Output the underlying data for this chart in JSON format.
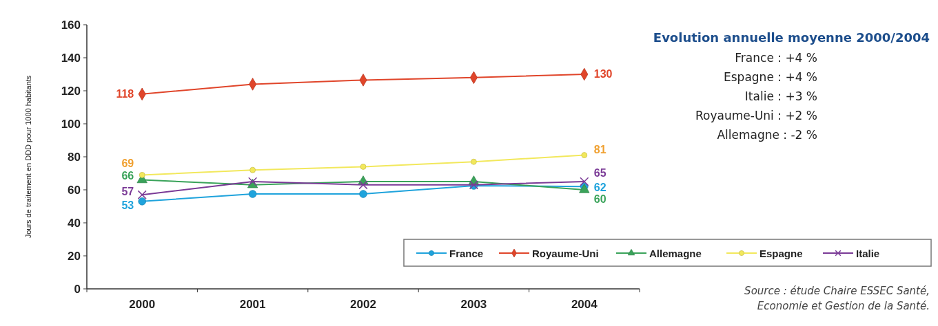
{
  "chart_data": {
    "type": "line",
    "title": "Evolution annuelle moyenne 2000/2004",
    "ylabel": "Jours de traitement en DDD pour 1000 habitants",
    "categories": [
      "2000",
      "2001",
      "2002",
      "2003",
      "2004"
    ],
    "ylim": [
      0,
      160
    ],
    "yticks": [
      0,
      20,
      40,
      60,
      80,
      100,
      120,
      140,
      160
    ],
    "grid": false,
    "legend": "bottom right",
    "series": [
      {
        "name": "France",
        "color": "#1fa3dc",
        "marker": "circle",
        "values": [
          53,
          57.5,
          57.5,
          62.5,
          62
        ],
        "value_labels": [
          "53",
          null,
          null,
          null,
          "62"
        ]
      },
      {
        "name": "Royaume-Uni",
        "color": "#e0452a",
        "marker": "diamond",
        "values": [
          118,
          124,
          126.5,
          128,
          130
        ],
        "value_labels": [
          "118",
          null,
          null,
          null,
          "130"
        ]
      },
      {
        "name": "Allemagne",
        "color": "#3aa35a",
        "marker": "triangle",
        "values": [
          66,
          63,
          65,
          65,
          60
        ],
        "value_labels": [
          "66",
          null,
          null,
          null,
          "60"
        ]
      },
      {
        "name": "Espagne",
        "color": "#f2e85c",
        "marker": "circle",
        "values": [
          69,
          72,
          74,
          77,
          81
        ],
        "value_labels": [
          "69",
          null,
          null,
          null,
          "81"
        ]
      },
      {
        "name": "Italie",
        "color": "#7a3a96",
        "marker": "cross",
        "values": [
          57,
          65,
          63,
          63,
          65
        ],
        "value_labels": [
          "57",
          null,
          null,
          null,
          "65"
        ]
      }
    ],
    "annotations": [
      "France : +4 %",
      "Espagne : +4 %",
      "Italie : +3 %",
      "Royaume-Uni : +2 %",
      "Allemagne : -2 %",
      "Source : étude Chaire ESSEC Santé,",
      "Economie et Gestion de la Santé."
    ]
  }
}
